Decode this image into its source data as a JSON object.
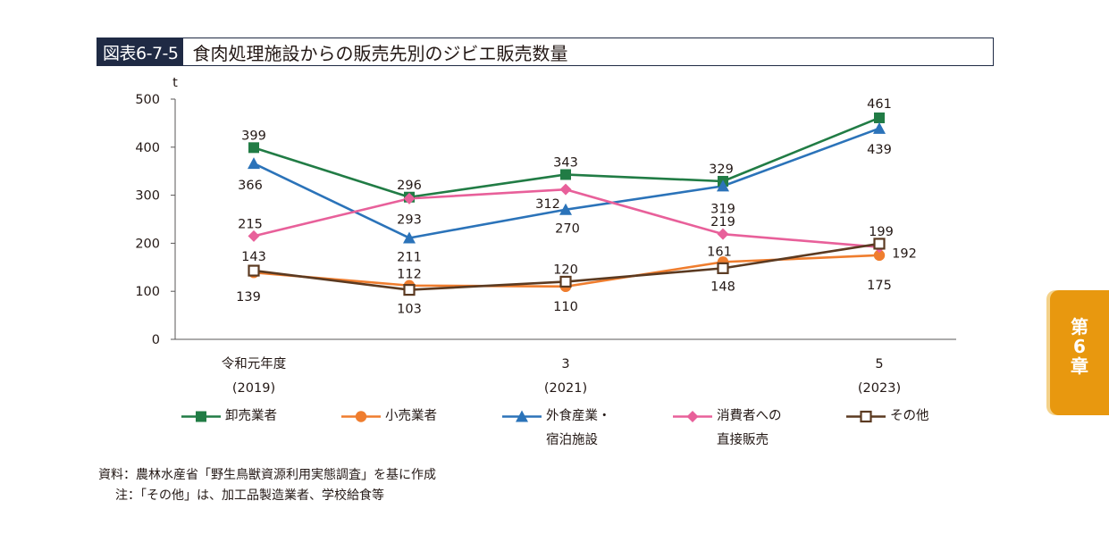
{
  "header": {
    "label": "図表6-7-5",
    "title": "食肉処理施設からの販売先別のジビエ販売数量"
  },
  "chapter_tab": {
    "text": "第\n6\n章",
    "color": "#e8980f"
  },
  "notes": {
    "source": "資料：農林水産省「野生鳥獣資源利用実態調査」を基に作成",
    "note": "注：「その他」は、加工品製造業者、学校給食等"
  },
  "chart_data": {
    "type": "line",
    "unit_label": "t",
    "ylim": [
      0,
      500
    ],
    "yticks": [
      0,
      100,
      200,
      300,
      400,
      500
    ],
    "x": [
      0,
      1,
      2,
      3,
      4
    ],
    "xtick_labels": [
      {
        "x": 0,
        "line1": "令和元年度",
        "line2": "(2019)"
      },
      {
        "x": 2,
        "line1": "3",
        "line2": "(2021)"
      },
      {
        "x": 4,
        "line1": "5",
        "line2": "(2023)"
      }
    ],
    "grid": false,
    "legend_position": "bottom",
    "series": [
      {
        "name": "卸売業者",
        "color": "#217c45",
        "marker": "square",
        "values": [
          399,
          296,
          343,
          329,
          461
        ]
      },
      {
        "name": "小売業者",
        "color": "#ef7d2e",
        "marker": "circle",
        "values": [
          139,
          112,
          110,
          161,
          175
        ]
      },
      {
        "name": "外食産業・\n宿泊施設",
        "color": "#2b73b9",
        "marker": "triangle",
        "values": [
          366,
          211,
          270,
          319,
          439
        ]
      },
      {
        "name": "消費者への\n直接販売",
        "color": "#e8609a",
        "marker": "diamond",
        "values": [
          215,
          293,
          312,
          219,
          192
        ]
      },
      {
        "name": "その他",
        "color": "#5b3a21",
        "marker": "open-square",
        "values": [
          143,
          103,
          120,
          148,
          199
        ]
      }
    ]
  }
}
